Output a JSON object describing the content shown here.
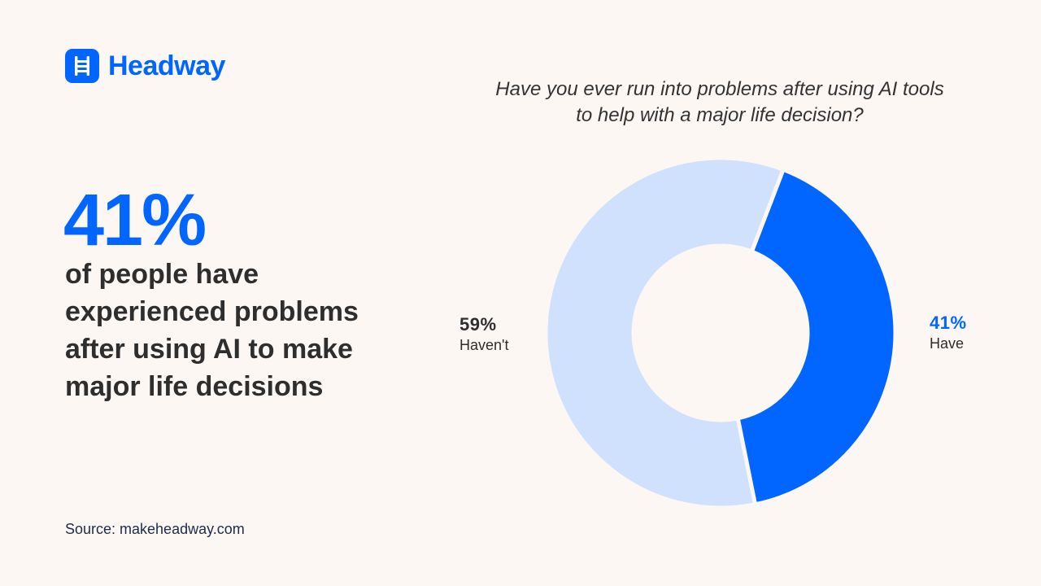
{
  "brand": {
    "name": "Headway",
    "color": "#0066ff"
  },
  "headline": {
    "stat": "41%",
    "text": "of people have experienced problems after using AI to make major life decisions"
  },
  "source": "Source: makeheadway.com",
  "chart_data": {
    "type": "pie",
    "title": "Have you ever run into problems after using AI tools to help with a major life decision?",
    "slices": [
      {
        "label": "Have",
        "value": 41,
        "display": "41%",
        "color": "#0066ff"
      },
      {
        "label": "Haven't",
        "value": 59,
        "display": "59%",
        "color": "#cfe1fd"
      }
    ]
  }
}
